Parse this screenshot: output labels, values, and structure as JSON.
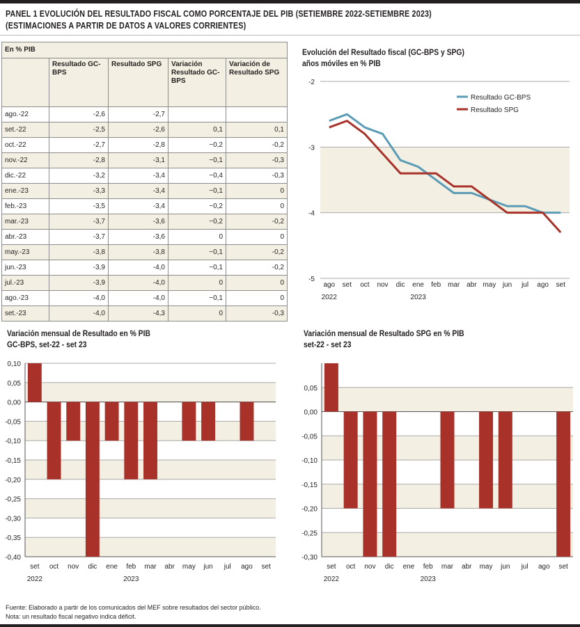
{
  "panel_title_line1": "PANEL 1  EVOLUCIÓN DEL RESULTADO FISCAL COMO PORCENTAJE DEL PIB (SETIEMBRE 2022-SETIEMBRE 2023)",
  "panel_title_line2": "(ESTIMACIONES A PARTIR DE DATOS A VALORES CORRIENTES)",
  "table": {
    "unit_label": "En % PIB",
    "headers": [
      "",
      "Resultado GC-BPS",
      "Resultado SPG",
      "Variación Resultado GC-BPS",
      "Variación de Resultado SPG"
    ],
    "rows": [
      [
        "ago.-22",
        "-2,6",
        "-2,7",
        "",
        ""
      ],
      [
        "set.-22",
        "-2,5",
        "-2,6",
        "0,1",
        "0,1"
      ],
      [
        "oct.-22",
        "-2,7",
        "-2,8",
        "−0,2",
        "-0,2"
      ],
      [
        "nov.-22",
        "-2,8",
        "-3,1",
        "−0,1",
        "-0,3"
      ],
      [
        "dic.-22",
        "-3,2",
        "-3,4",
        "−0,4",
        "-0,3"
      ],
      [
        "ene.-23",
        "-3,3",
        "-3,4",
        "−0,1",
        "0"
      ],
      [
        "feb.-23",
        "-3,5",
        "-3,4",
        "−0,2",
        "0"
      ],
      [
        "mar.-23",
        "-3,7",
        "-3,6",
        "−0,2",
        "-0,2"
      ],
      [
        "abr.-23",
        "-3,7",
        "-3,6",
        "0",
        "0"
      ],
      [
        "may.-23",
        "-3,8",
        "-3,8",
        "−0,1",
        "-0,2"
      ],
      [
        "jun.-23",
        "-3,9",
        "-4,0",
        "−0,1",
        "-0,2"
      ],
      [
        "jul.-23",
        "-3,9",
        "-4,0",
        "0",
        "0"
      ],
      [
        "ago.-23",
        "-4,0",
        "-4,0",
        "−0,1",
        "0"
      ],
      [
        "set.-23",
        "-4,0",
        "-4,3",
        "0",
        "-0,3"
      ]
    ]
  },
  "colors": {
    "gcbps": "#5b9bb5",
    "spg": "#a8322a",
    "band": "#f3f0e3",
    "grid": "#a8a8a8"
  },
  "footnote_line1": "Fuente: Elaborado a partir de los comunicados del MEF sobre resultados del sector público.",
  "footnote_line2": "Nota: un resultado fiscal negativo indica déficit.",
  "chart_data": [
    {
      "type": "line",
      "title": "Evolución del Resultado fiscal (GC-BPS y SPG)",
      "subtitle": "años móviles en % PIB",
      "categories": [
        "ago",
        "set",
        "oct",
        "nov",
        "dic",
        "ene",
        "feb",
        "mar",
        "abr",
        "may",
        "jun",
        "jul",
        "ago",
        "set"
      ],
      "year_labels": [
        {
          "index": 0,
          "label": "2022"
        },
        {
          "index": 5,
          "label": "2023"
        }
      ],
      "y_ticks": [
        "-2",
        "-3",
        "-4",
        "-5"
      ],
      "ylim": [
        -5,
        -2
      ],
      "legend_position": "top-right",
      "series": [
        {
          "name": "Resultado GC-BPS",
          "color": "#5b9bb5",
          "values": [
            -2.6,
            -2.5,
            -2.7,
            -2.8,
            -3.2,
            -3.3,
            -3.5,
            -3.7,
            -3.7,
            -3.8,
            -3.9,
            -3.9,
            -4.0,
            -4.0
          ]
        },
        {
          "name": "Resultado SPG",
          "color": "#a8322a",
          "values": [
            -2.7,
            -2.6,
            -2.8,
            -3.1,
            -3.4,
            -3.4,
            -3.4,
            -3.6,
            -3.6,
            -3.8,
            -4.0,
            -4.0,
            -4.0,
            -4.3
          ]
        }
      ]
    },
    {
      "type": "bar",
      "title": "Variación mensual de Resultado en % PIB",
      "subtitle": "GC-BPS, set-22 - set 23",
      "categories": [
        "set",
        "oct",
        "nov",
        "dic",
        "ene",
        "feb",
        "mar",
        "abr",
        "may",
        "jun",
        "jul",
        "ago",
        "set"
      ],
      "year_labels": [
        {
          "index": 0,
          "label": "2022"
        },
        {
          "index": 5,
          "label": "2023"
        }
      ],
      "values": [
        0.1,
        -0.2,
        -0.1,
        -0.4,
        -0.1,
        -0.2,
        -0.2,
        0,
        -0.1,
        -0.1,
        0,
        -0.1,
        0
      ],
      "y_ticks": [
        "0,10",
        "0,05",
        "0,00",
        "-0,05",
        "-0,10",
        "-0,15",
        "-0,20",
        "-0,25",
        "-0,30",
        "-0,35",
        "-0,40"
      ],
      "ylim": [
        -0.4,
        0.1
      ],
      "color": "#a8322a"
    },
    {
      "type": "bar",
      "title": "Variación mensual de Resultado SPG en % PIB",
      "subtitle": "set-22 - set 23",
      "categories": [
        "set",
        "oct",
        "nov",
        "dic",
        "ene",
        "feb",
        "mar",
        "abr",
        "may",
        "jun",
        "jul",
        "ago",
        "set"
      ],
      "year_labels": [
        {
          "index": 0,
          "label": "2022"
        },
        {
          "index": 5,
          "label": "2023"
        }
      ],
      "values": [
        0.1,
        -0.2,
        -0.3,
        -0.3,
        0,
        0,
        -0.2,
        0,
        -0.2,
        -0.2,
        0,
        0,
        -0.3
      ],
      "y_ticks": [
        "0,05",
        "0,00",
        "-0,05",
        "-0,10",
        "-0,15",
        "-0,20",
        "-0,25",
        "-0,30"
      ],
      "ylim": [
        -0.3,
        0.1
      ],
      "color": "#a8322a"
    }
  ]
}
